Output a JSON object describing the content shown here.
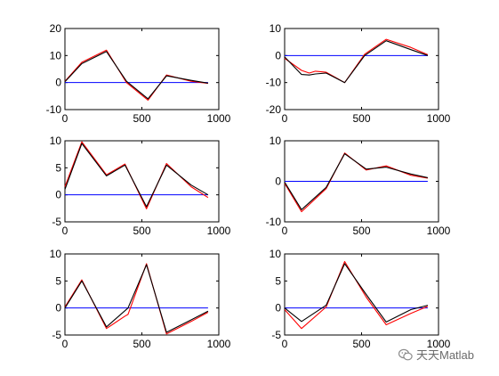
{
  "chart_data": [
    {
      "type": "line",
      "xlim": [
        0,
        1000
      ],
      "ylim": [
        -10,
        20
      ],
      "xticks": [
        0,
        500,
        1000
      ],
      "yticks": [
        -10,
        0,
        10,
        20
      ],
      "xtick_labels": [
        "0",
        "500",
        "1000"
      ],
      "ytick_labels": [
        "-10",
        "0",
        "10",
        "20"
      ],
      "reference_line": {
        "y": 0,
        "color": "#0000ff"
      },
      "series": [
        {
          "color": "#ff0000",
          "x": [
            0,
            110,
            270,
            400,
            540,
            660,
            820,
            930
          ],
          "y": [
            0.5,
            7.5,
            12,
            0,
            -6.5,
            2.8,
            0.5,
            -0.3
          ]
        },
        {
          "color": "#000000",
          "x": [
            0,
            110,
            270,
            400,
            540,
            660,
            820,
            930
          ],
          "y": [
            0.3,
            7,
            11.5,
            0.5,
            -6,
            2.5,
            0.8,
            -0.2
          ]
        }
      ]
    },
    {
      "type": "line",
      "xlim": [
        0,
        1000
      ],
      "ylim": [
        -20,
        10
      ],
      "xticks": [
        0,
        500,
        1000
      ],
      "yticks": [
        -20,
        -10,
        0,
        10
      ],
      "xtick_labels": [
        "0",
        "500",
        "1000"
      ],
      "ytick_labels": [
        "-20",
        "-10",
        "0",
        "10"
      ],
      "reference_line": {
        "y": 0,
        "color": "#0000ff"
      },
      "series": [
        {
          "color": "#ff0000",
          "x": [
            0,
            110,
            160,
            200,
            270,
            390,
            520,
            660,
            820,
            930
          ],
          "y": [
            -1,
            -5.5,
            -6.5,
            -5.8,
            -6.2,
            -10,
            0.5,
            6,
            3,
            0.3
          ]
        },
        {
          "color": "#000000",
          "x": [
            0,
            110,
            160,
            200,
            270,
            390,
            520,
            660,
            820,
            930
          ],
          "y": [
            -0.5,
            -7,
            -7.2,
            -6.8,
            -6.5,
            -10,
            0,
            5.5,
            2.2,
            0
          ]
        }
      ]
    },
    {
      "type": "line",
      "xlim": [
        0,
        1000
      ],
      "ylim": [
        -5,
        10
      ],
      "xticks": [
        0,
        500,
        1000
      ],
      "yticks": [
        -5,
        0,
        5,
        10
      ],
      "xtick_labels": [
        "0",
        "500",
        "1000"
      ],
      "ytick_labels": [
        "-5",
        "0",
        "5",
        "10"
      ],
      "reference_line": {
        "y": 0,
        "color": "#0000ff"
      },
      "series": [
        {
          "color": "#ff0000",
          "x": [
            0,
            110,
            270,
            390,
            530,
            660,
            820,
            930
          ],
          "y": [
            1.5,
            9.8,
            3.7,
            5.7,
            -2.6,
            5.8,
            1.5,
            -0.5
          ]
        },
        {
          "color": "#000000",
          "x": [
            0,
            110,
            270,
            390,
            530,
            660,
            820,
            930
          ],
          "y": [
            1,
            9.5,
            3.5,
            5.5,
            -2.2,
            5.5,
            1.8,
            0
          ]
        }
      ]
    },
    {
      "type": "line",
      "xlim": [
        0,
        1000
      ],
      "ylim": [
        -10,
        10
      ],
      "xticks": [
        0,
        500,
        1000
      ],
      "yticks": [
        -10,
        0,
        10
      ],
      "xtick_labels": [
        "0",
        "500",
        "1000"
      ],
      "ytick_labels": [
        "-10",
        "0",
        "10"
      ],
      "reference_line": {
        "y": 0,
        "color": "#0000ff"
      },
      "series": [
        {
          "color": "#ff0000",
          "x": [
            0,
            110,
            270,
            390,
            530,
            660,
            820,
            930
          ],
          "y": [
            -0.5,
            -7.5,
            -1.8,
            7,
            2.8,
            3.8,
            1.5,
            0.8
          ]
        },
        {
          "color": "#000000",
          "x": [
            0,
            110,
            270,
            390,
            530,
            660,
            820,
            930
          ],
          "y": [
            -0.2,
            -7,
            -1.5,
            6.8,
            3,
            3.5,
            1.8,
            0.9
          ]
        }
      ]
    },
    {
      "type": "line",
      "xlim": [
        0,
        1000
      ],
      "ylim": [
        -5,
        10
      ],
      "xticks": [
        0,
        500,
        1000
      ],
      "yticks": [
        -5,
        0,
        5,
        10
      ],
      "xtick_labels": [
        "0",
        "500",
        "1000"
      ],
      "ytick_labels": [
        "-5",
        "0",
        "5",
        "10"
      ],
      "reference_line": {
        "y": 0,
        "color": "#0000ff"
      },
      "series": [
        {
          "color": "#ff0000",
          "x": [
            0,
            110,
            270,
            390,
            410,
            530,
            660,
            820,
            930
          ],
          "y": [
            0.2,
            5.2,
            -3.8,
            -1.5,
            -1.2,
            8.2,
            -4.8,
            -2.5,
            -0.8
          ]
        },
        {
          "color": "#000000",
          "x": [
            0,
            110,
            270,
            390,
            410,
            530,
            660,
            820,
            930
          ],
          "y": [
            0,
            5,
            -3.5,
            -0.5,
            0,
            8,
            -4.5,
            -2.2,
            -0.6
          ]
        }
      ]
    },
    {
      "type": "line",
      "xlim": [
        0,
        1000
      ],
      "ylim": [
        -5,
        10
      ],
      "xticks": [
        0,
        500,
        1000
      ],
      "yticks": [
        -5,
        0,
        5,
        10
      ],
      "xtick_labels": [
        "0",
        "500",
        "1000"
      ],
      "ytick_labels": [
        "-5",
        "0",
        "5",
        "10"
      ],
      "reference_line": {
        "y": 0,
        "color": "#0000ff"
      },
      "series": [
        {
          "color": "#ff0000",
          "x": [
            0,
            110,
            270,
            390,
            530,
            660,
            820,
            930
          ],
          "y": [
            -0.3,
            -3.8,
            0.2,
            8.6,
            2,
            -3.1,
            -1,
            0.3
          ]
        },
        {
          "color": "#000000",
          "x": [
            0,
            110,
            270,
            390,
            530,
            660,
            820,
            930
          ],
          "y": [
            0,
            -2.5,
            0.5,
            8.2,
            2.5,
            -2.6,
            -0.3,
            0.5
          ]
        }
      ]
    }
  ],
  "watermark": {
    "text": "天天Matlab",
    "icon": "wechat-icon"
  }
}
